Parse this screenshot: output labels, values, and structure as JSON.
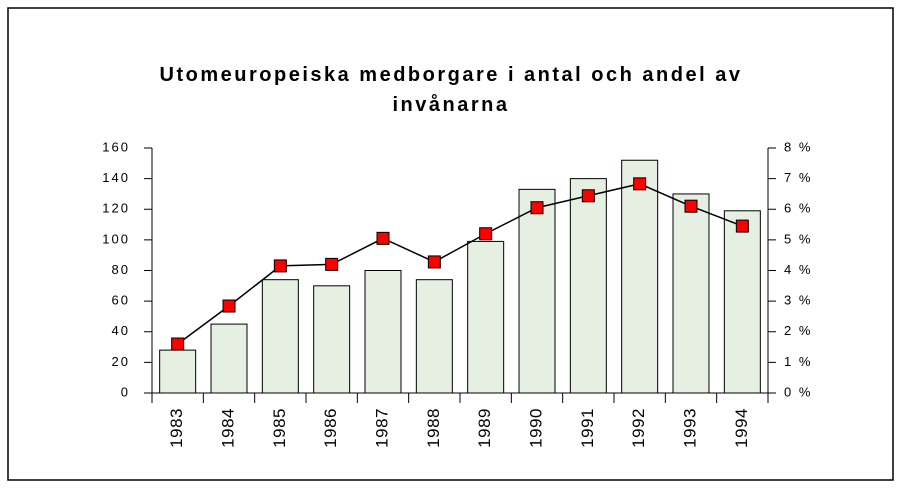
{
  "chart_data": {
    "type": "bar_line",
    "title": "Utomeuropeiska medborgare i antal och andel av invånarna",
    "categories": [
      "1983",
      "1984",
      "1985",
      "1986",
      "1987",
      "1988",
      "1989",
      "1990",
      "1991",
      "1992",
      "1993",
      "1994"
    ],
    "series": [
      {
        "type": "bar",
        "color": "#e6f0e2",
        "values": [
          28,
          45,
          74,
          70,
          80,
          74,
          99,
          133,
          140,
          152,
          130,
          119
        ]
      },
      {
        "type": "line",
        "axis": "y2",
        "color": "#ff0000",
        "values": [
          1.6,
          2.84,
          4.15,
          4.2,
          5.05,
          4.28,
          5.2,
          6.05,
          6.44,
          6.83,
          6.1,
          5.45
        ]
      }
    ],
    "ylim": [
      0,
      160
    ],
    "yticks": [
      0,
      20,
      40,
      60,
      80,
      100,
      120,
      140,
      160
    ],
    "y2lim": [
      0,
      8
    ],
    "y2ticks": [
      {
        "value": 0,
        "label": "0 %"
      },
      {
        "value": 1,
        "label": "1 %"
      },
      {
        "value": 2,
        "label": "2 %"
      },
      {
        "value": 3,
        "label": "3 %"
      },
      {
        "value": 4,
        "label": "4 %"
      },
      {
        "value": 5,
        "label": "5 %"
      },
      {
        "value": 6,
        "label": "6 %"
      },
      {
        "value": 7,
        "label": "7 %"
      },
      {
        "value": 8,
        "label": "8 %"
      }
    ]
  }
}
